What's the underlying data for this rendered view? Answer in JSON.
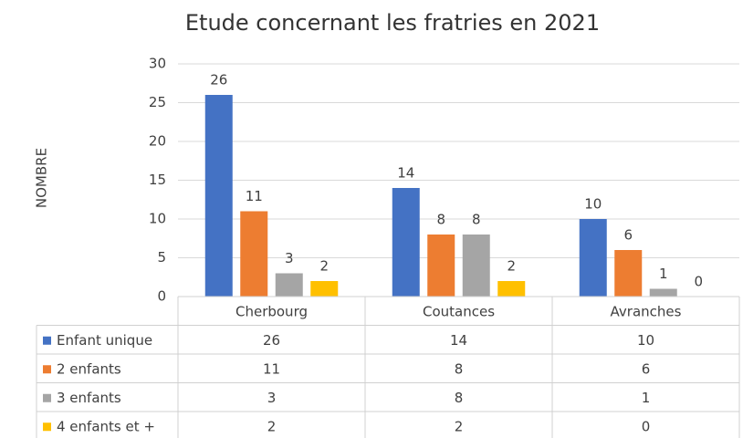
{
  "chart_data": {
    "type": "bar",
    "title": "Etude concernant les fratries en 2021",
    "y_label": "NOMBRE",
    "categories": [
      "Cherbourg",
      "Coutances",
      "Avranches"
    ],
    "series": [
      {
        "name": "Enfant unique",
        "color": "#4472c4",
        "values": [
          26,
          14,
          10
        ]
      },
      {
        "name": "2 enfants",
        "color": "#ed7d31",
        "values": [
          11,
          8,
          6
        ]
      },
      {
        "name": "3 enfants",
        "color": "#a5a5a5",
        "values": [
          3,
          8,
          1
        ]
      },
      {
        "name": "4 enfants et +",
        "color": "#ffc000",
        "values": [
          2,
          2,
          0
        ]
      }
    ],
    "ylim": [
      0,
      30
    ],
    "yticks": [
      0,
      5,
      10,
      15,
      20,
      25,
      30
    ],
    "grid": true,
    "data_table": true
  }
}
